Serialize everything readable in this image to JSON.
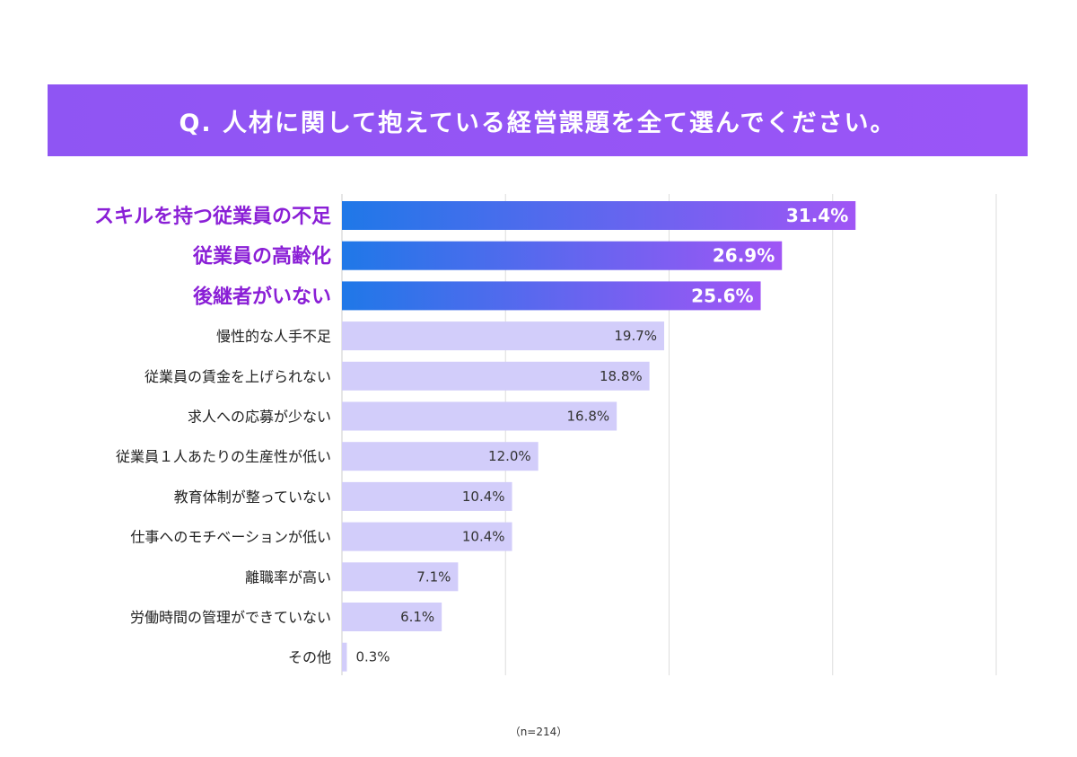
{
  "chart_data": {
    "type": "bar",
    "orientation": "horizontal",
    "title": "Q. 人材に関して抱えている経営課題を全て選んでください。",
    "categories": [
      "スキルを持つ従業員の不足",
      "従業員の高齢化",
      "後継者がいない",
      "慢性的な人手不足",
      "従業員の賃金を上げられない",
      "求人への応募が少ない",
      "従業員１人あたりの生産性が低い",
      "教育体制が整っていない",
      "仕事へのモチベーションが低い",
      "離職率が高い",
      "労働時間の管理ができていない",
      "その他"
    ],
    "values": [
      31.4,
      26.9,
      25.6,
      19.7,
      18.8,
      16.8,
      12.0,
      10.4,
      10.4,
      7.1,
      6.1,
      0.3
    ],
    "value_labels": [
      "31.4%",
      "26.9%",
      "25.6%",
      "19.7%",
      "18.8%",
      "16.8%",
      "12.0%",
      "10.4%",
      "10.4%",
      "7.1%",
      "6.1%",
      "0.3%"
    ],
    "highlight_count": 3,
    "xlim": [
      0,
      40
    ],
    "grid": true,
    "note": "（n=214）"
  },
  "colors": {
    "highlight_start": "#1f78e8",
    "highlight_end": "#a055f5",
    "highlight_label": "#8a1fd6",
    "normal_bar": "#d2cdfa",
    "normal_label": "#222222",
    "grid": "#dddddd"
  }
}
